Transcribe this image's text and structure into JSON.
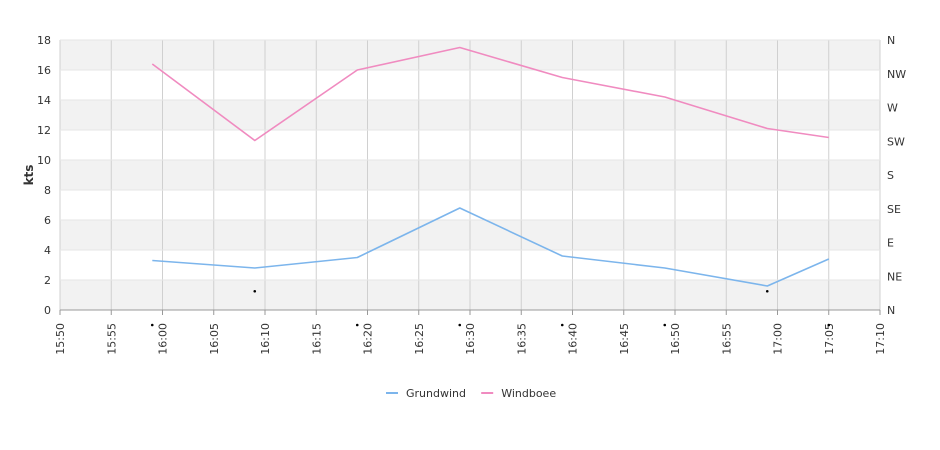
{
  "chart_data": {
    "type": "line",
    "ylabel": "kts",
    "xlim": [
      "15:50",
      "17:10"
    ],
    "ylim": [
      0,
      18
    ],
    "x_ticks": [
      "15:50",
      "15:55",
      "16:00",
      "16:05",
      "16:10",
      "16:15",
      "16:20",
      "16:25",
      "16:30",
      "16:35",
      "16:40",
      "16:45",
      "16:50",
      "16:55",
      "17:00",
      "17:05",
      "17:10"
    ],
    "y_ticks": [
      0,
      2,
      4,
      6,
      8,
      10,
      12,
      14,
      16,
      18
    ],
    "y2_ticks": [
      "N",
      "NE",
      "E",
      "SE",
      "S",
      "SW",
      "W",
      "NW",
      "N"
    ],
    "x": [
      "15:59",
      "16:09",
      "16:19",
      "16:29",
      "16:39",
      "16:49",
      "16:59",
      "17:05"
    ],
    "series": [
      {
        "name": "Grundwind",
        "color": "#7cb5ec",
        "values": [
          3.3,
          2.8,
          3.5,
          6.8,
          3.6,
          2.8,
          1.6,
          3.4
        ]
      },
      {
        "name": "Windboee",
        "color": "#f08bc0",
        "values": [
          16.4,
          11.3,
          16.0,
          17.5,
          15.5,
          14.2,
          12.1,
          11.5
        ]
      }
    ],
    "direction": {
      "x": [
        "15:59",
        "16:09",
        "16:19",
        "16:29",
        "16:39",
        "16:49",
        "16:59",
        "17:05"
      ],
      "values": [
        "N",
        "NE",
        "N",
        "N",
        "N",
        "N",
        "NE",
        "N"
      ]
    },
    "grid": true,
    "banded_background": true,
    "legend_position": "bottom-center"
  }
}
